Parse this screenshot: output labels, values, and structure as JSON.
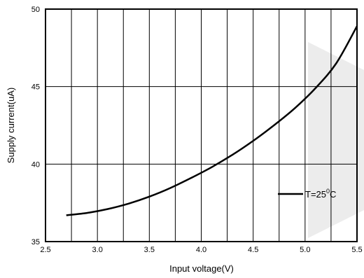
{
  "chart_data": {
    "type": "line",
    "title": "",
    "xlabel": "Input voltage(V)",
    "ylabel": "Supply current(uA)",
    "xlim": [
      2.5,
      5.5
    ],
    "ylim": [
      35,
      50
    ],
    "x_ticks": [
      "2.5",
      "3.0",
      "3.5",
      "4.0",
      "4.5",
      "5.0",
      "5.5"
    ],
    "y_ticks": [
      "35",
      "40",
      "45",
      "50"
    ],
    "x_tick_values": [
      2.5,
      3.0,
      3.5,
      4.0,
      4.5,
      5.0,
      5.5
    ],
    "y_tick_values": [
      35,
      40,
      45,
      50
    ],
    "x_grid_values": [
      2.5,
      2.75,
      3.0,
      3.25,
      3.5,
      3.75,
      4.0,
      4.25,
      4.5,
      4.75,
      5.0,
      5.25,
      5.5
    ],
    "y_grid_values": [
      35,
      40,
      45,
      50
    ],
    "grid": true,
    "legend_position": "right",
    "legend": {
      "label_main": "T=25",
      "label_sup": "0",
      "label_tail": "C"
    },
    "series": [
      {
        "x": [
          2.7,
          2.9,
          3.1,
          3.3,
          3.5,
          3.7,
          3.9,
          4.1,
          4.3,
          4.5,
          4.7,
          4.9,
          5.1,
          5.3,
          5.5
        ],
        "values": [
          36.7,
          36.85,
          37.1,
          37.45,
          37.9,
          38.45,
          39.1,
          39.8,
          40.6,
          41.5,
          42.5,
          43.6,
          44.9,
          46.5,
          48.9
        ],
        "color": "#000000"
      }
    ]
  }
}
